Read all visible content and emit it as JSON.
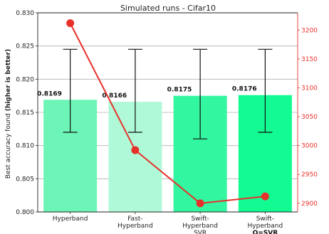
{
  "chart_data": {
    "type": "bar",
    "title": "Simulated runs - Cifar10",
    "ylabel": "Best accuracy found",
    "ylabel_emphasis": "(higher is better)",
    "xlabel": "",
    "categories": [
      {
        "lines": [
          "Hyperband"
        ],
        "bold_line": ""
      },
      {
        "lines": [
          "Fast-",
          "Hyperband"
        ],
        "bold_line": ""
      },
      {
        "lines": [
          "Swift-",
          "Hyperband",
          "SVR"
        ],
        "bold_line": ""
      },
      {
        "lines": [
          "Swift-",
          "Hyperband"
        ],
        "bold_line": "Q=SVR"
      }
    ],
    "ylim": [
      0.8,
      0.83
    ],
    "yticks": [
      "0.800",
      "0.805",
      "0.810",
      "0.815",
      "0.820",
      "0.825",
      "0.830"
    ],
    "series": [
      {
        "values": [
          0.8169,
          0.8166,
          0.8175,
          0.8176
        ],
        "value_labels": [
          "0.8169",
          "0.8166",
          "0.8175",
          "0.8176"
        ],
        "colors": [
          "#6cf5b6",
          "#b0f9d8",
          "#33f6a0",
          "#12fb92"
        ],
        "error_low": [
          0.812,
          0.812,
          0.811,
          0.812
        ],
        "error_high": [
          0.8245,
          0.8245,
          0.8245,
          0.8245
        ]
      }
    ],
    "secondary": {
      "type": "line",
      "color": "#e8302a",
      "values": [
        3212,
        2992,
        2900,
        2912
      ],
      "yticks": [
        "2900",
        "2950",
        "3000",
        "3050",
        "3100",
        "3150",
        "3200"
      ],
      "ylim": [
        2885,
        3230
      ]
    },
    "grid": true
  }
}
